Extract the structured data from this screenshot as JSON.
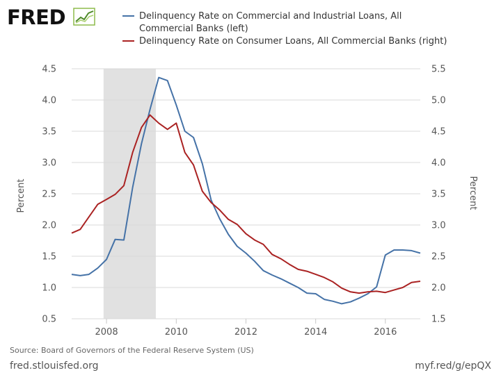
{
  "logo": {
    "text": "FRED"
  },
  "footer": {
    "source": "Source: Board of Governors of the Federal Reserve System (US)",
    "site": "fred.stlouisfed.org",
    "short_url": "myf.red/g/epQX"
  },
  "colors": {
    "left_series": "#4572a7",
    "right_series": "#aa2222",
    "recession": "#e1e1e1",
    "grid": "#d9d9d9"
  },
  "chart_data": {
    "type": "line",
    "legend": [
      {
        "lines": [
          "Delinquency Rate on Commercial and Industrial Loans, All",
          "Commercial Banks (left)"
        ],
        "color": "#4572a7"
      },
      {
        "lines": [
          "Delinquency Rate on Consumer Loans, All Commercial Banks (right)"
        ],
        "color": "#aa2222"
      }
    ],
    "x_ticks": [
      "2008",
      "2010",
      "2012",
      "2014",
      "2016"
    ],
    "x_range": [
      "2007-01-01",
      "2017-01-01"
    ],
    "y_left": {
      "label": "Percent",
      "range": [
        0.5,
        4.5
      ],
      "ticks": [
        "0.5",
        "1.0",
        "1.5",
        "2.0",
        "2.5",
        "3.0",
        "3.5",
        "4.0",
        "4.5"
      ]
    },
    "y_right": {
      "label": "Percent",
      "range": [
        1.5,
        5.5
      ],
      "ticks": [
        "1.5",
        "2.0",
        "2.5",
        "3.0",
        "3.5",
        "4.0",
        "4.5",
        "5.0",
        "5.5"
      ]
    },
    "recession": {
      "start": "2007-12-01",
      "end": "2009-06-01"
    },
    "series": [
      {
        "name": "Delinquency Rate on Commercial and Industrial Loans, All Commercial Banks (left)",
        "axis": "left",
        "color": "#4572a7",
        "x": [
          "2007-01-01",
          "2007-04-01",
          "2007-07-01",
          "2007-10-01",
          "2008-01-01",
          "2008-04-01",
          "2008-07-01",
          "2008-10-01",
          "2009-01-01",
          "2009-04-01",
          "2009-07-01",
          "2009-10-01",
          "2010-01-01",
          "2010-04-01",
          "2010-07-01",
          "2010-10-01",
          "2011-01-01",
          "2011-04-01",
          "2011-07-01",
          "2011-10-01",
          "2012-01-01",
          "2012-04-01",
          "2012-07-01",
          "2012-10-01",
          "2013-01-01",
          "2013-04-01",
          "2013-07-01",
          "2013-10-01",
          "2014-01-01",
          "2014-04-01",
          "2014-07-01",
          "2014-10-01",
          "2015-01-01",
          "2015-04-01",
          "2015-07-01",
          "2015-10-01",
          "2016-01-01",
          "2016-04-01",
          "2016-07-01",
          "2016-10-01",
          "2017-01-01"
        ],
        "values": [
          1.21,
          1.19,
          1.21,
          1.31,
          1.45,
          1.77,
          1.76,
          2.6,
          3.3,
          3.85,
          4.36,
          4.31,
          3.92,
          3.5,
          3.4,
          2.98,
          2.4,
          2.1,
          1.85,
          1.66,
          1.55,
          1.42,
          1.27,
          1.2,
          1.14,
          1.07,
          1.0,
          0.91,
          0.9,
          0.81,
          0.78,
          0.74,
          0.77,
          0.83,
          0.9,
          1.01,
          1.52,
          1.6,
          1.6,
          1.59,
          1.55
        ]
      },
      {
        "name": "Delinquency Rate on Consumer Loans, All Commercial Banks (right)",
        "axis": "right",
        "color": "#aa2222",
        "x": [
          "2007-01-01",
          "2007-04-01",
          "2007-07-01",
          "2007-10-01",
          "2008-01-01",
          "2008-04-01",
          "2008-07-01",
          "2008-10-01",
          "2009-01-01",
          "2009-04-01",
          "2009-07-01",
          "2009-10-01",
          "2010-01-01",
          "2010-04-01",
          "2010-07-01",
          "2010-10-01",
          "2011-01-01",
          "2011-04-01",
          "2011-07-01",
          "2011-10-01",
          "2012-01-01",
          "2012-04-01",
          "2012-07-01",
          "2012-10-01",
          "2013-01-01",
          "2013-04-01",
          "2013-07-01",
          "2013-10-01",
          "2014-01-01",
          "2014-04-01",
          "2014-07-01",
          "2014-10-01",
          "2015-01-01",
          "2015-04-01",
          "2015-07-01",
          "2015-10-01",
          "2016-01-01",
          "2016-04-01",
          "2016-07-01",
          "2016-10-01",
          "2017-01-01"
        ],
        "values": [
          2.87,
          2.93,
          3.13,
          3.33,
          3.41,
          3.49,
          3.63,
          4.16,
          4.56,
          4.76,
          4.63,
          4.53,
          4.63,
          4.16,
          3.96,
          3.54,
          3.36,
          3.24,
          3.09,
          3.01,
          2.86,
          2.76,
          2.69,
          2.53,
          2.46,
          2.37,
          2.29,
          2.26,
          2.21,
          2.16,
          2.09,
          1.99,
          1.93,
          1.91,
          1.93,
          1.94,
          1.92,
          1.96,
          2.0,
          2.08,
          2.1
        ]
      }
    ]
  }
}
